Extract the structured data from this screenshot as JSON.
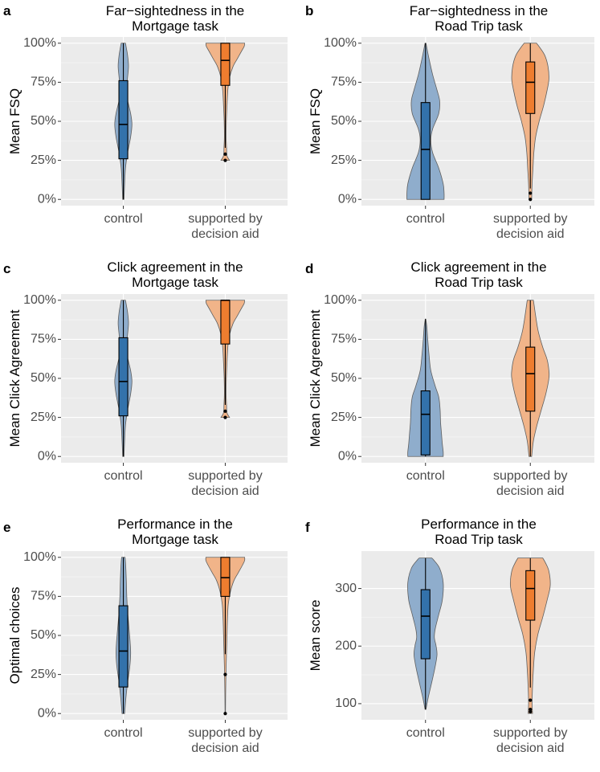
{
  "colors": {
    "control_violin": "#8fadcc",
    "control_box": "#3372ab",
    "aid_violin": "#f1b489",
    "aid_box": "#ee7d2f"
  },
  "chart_data": [
    {
      "letter": "a",
      "type": "violin",
      "title_lines": [
        "Far−sightedness in the",
        "Mortgage task"
      ],
      "ylabel": "Mean FSQ",
      "ylim": [
        -0.04,
        1.04
      ],
      "yticks": [
        0,
        0.25,
        0.5,
        0.75,
        1.0
      ],
      "ytick_labels": [
        "0%",
        "25%",
        "50%",
        "75%",
        "100%"
      ],
      "categories": [
        [
          "control"
        ],
        [
          "supported by",
          "decision aid"
        ]
      ],
      "groups": [
        {
          "name": "control",
          "violin": [
            [
              0.0,
              0.015
            ],
            [
              0.1,
              0.03
            ],
            [
              0.2,
              0.05
            ],
            [
              0.3,
              0.1
            ],
            [
              0.4,
              0.17
            ],
            [
              0.48,
              0.2
            ],
            [
              0.55,
              0.17
            ],
            [
              0.65,
              0.09
            ],
            [
              0.75,
              0.09
            ],
            [
              0.85,
              0.12
            ],
            [
              0.92,
              0.1
            ],
            [
              0.97,
              0.07
            ],
            [
              1.0,
              0.05
            ]
          ],
          "box": {
            "min": 0.0,
            "q1": 0.26,
            "median": 0.48,
            "q3": 0.76,
            "max": 1.0
          },
          "outliers": []
        },
        {
          "name": "supported by decision aid",
          "violin": [
            [
              0.25,
              0.1
            ],
            [
              0.28,
              0.04
            ],
            [
              0.33,
              0.03
            ],
            [
              0.4,
              0.02
            ],
            [
              0.5,
              0.025
            ],
            [
              0.6,
              0.04
            ],
            [
              0.7,
              0.06
            ],
            [
              0.78,
              0.1
            ],
            [
              0.85,
              0.18
            ],
            [
              0.9,
              0.28
            ],
            [
              0.95,
              0.38
            ],
            [
              0.98,
              0.44
            ],
            [
              1.0,
              0.45
            ]
          ],
          "box": {
            "min": 0.33,
            "q1": 0.73,
            "median": 0.89,
            "q3": 1.0,
            "max": 1.0
          },
          "outliers": [
            0.29,
            0.25
          ]
        }
      ]
    },
    {
      "letter": "b",
      "type": "violin",
      "title_lines": [
        "Far−sightedness in the",
        "Road Trip task"
      ],
      "ylabel": "Mean FSQ",
      "ylim": [
        -0.04,
        1.04
      ],
      "yticks": [
        0,
        0.25,
        0.5,
        0.75,
        1.0
      ],
      "ytick_labels": [
        "0%",
        "25%",
        "50%",
        "75%",
        "100%"
      ],
      "categories": [
        [
          "control"
        ],
        [
          "supported by",
          "decision aid"
        ]
      ],
      "groups": [
        {
          "name": "control",
          "violin": [
            [
              0.0,
              0.42
            ],
            [
              0.04,
              0.42
            ],
            [
              0.1,
              0.4
            ],
            [
              0.2,
              0.3
            ],
            [
              0.3,
              0.16
            ],
            [
              0.38,
              0.12
            ],
            [
              0.45,
              0.16
            ],
            [
              0.55,
              0.3
            ],
            [
              0.63,
              0.32
            ],
            [
              0.7,
              0.26
            ],
            [
              0.8,
              0.16
            ],
            [
              0.9,
              0.08
            ],
            [
              1.0,
              0.01
            ]
          ],
          "box": {
            "min": 0.0,
            "q1": 0.0,
            "median": 0.32,
            "q3": 0.62,
            "max": 1.0
          },
          "outliers": []
        },
        {
          "name": "supported by decision aid",
          "violin": [
            [
              0.0,
              0.03
            ],
            [
              0.1,
              0.04
            ],
            [
              0.2,
              0.06
            ],
            [
              0.3,
              0.08
            ],
            [
              0.4,
              0.12
            ],
            [
              0.5,
              0.2
            ],
            [
              0.6,
              0.3
            ],
            [
              0.7,
              0.38
            ],
            [
              0.77,
              0.42
            ],
            [
              0.85,
              0.4
            ],
            [
              0.92,
              0.33
            ],
            [
              0.97,
              0.22
            ],
            [
              1.0,
              0.14
            ]
          ],
          "box": {
            "min": 0.07,
            "q1": 0.55,
            "median": 0.75,
            "q3": 0.88,
            "max": 1.0
          },
          "outliers": [
            0.04,
            0.0
          ]
        }
      ]
    },
    {
      "letter": "c",
      "type": "violin",
      "title_lines": [
        "Click agreement in the",
        "Mortgage task"
      ],
      "ylabel": "Mean Click Agreement",
      "ylim": [
        -0.04,
        1.04
      ],
      "yticks": [
        0,
        0.25,
        0.5,
        0.75,
        1.0
      ],
      "ytick_labels": [
        "0%",
        "25%",
        "50%",
        "75%",
        "100%"
      ],
      "categories": [
        [
          "control"
        ],
        [
          "supported by",
          "decision aid"
        ]
      ],
      "groups": [
        {
          "name": "control",
          "violin": [
            [
              0.0,
              0.015
            ],
            [
              0.1,
              0.03
            ],
            [
              0.2,
              0.05
            ],
            [
              0.3,
              0.1
            ],
            [
              0.4,
              0.17
            ],
            [
              0.48,
              0.2
            ],
            [
              0.55,
              0.17
            ],
            [
              0.65,
              0.09
            ],
            [
              0.75,
              0.09
            ],
            [
              0.85,
              0.12
            ],
            [
              0.92,
              0.1
            ],
            [
              0.97,
              0.07
            ],
            [
              1.0,
              0.05
            ]
          ],
          "box": {
            "min": 0.0,
            "q1": 0.26,
            "median": 0.48,
            "q3": 0.76,
            "max": 1.0
          },
          "outliers": []
        },
        {
          "name": "supported by decision aid",
          "violin": [
            [
              0.25,
              0.1
            ],
            [
              0.28,
              0.04
            ],
            [
              0.33,
              0.03
            ],
            [
              0.4,
              0.02
            ],
            [
              0.5,
              0.025
            ],
            [
              0.6,
              0.04
            ],
            [
              0.7,
              0.06
            ],
            [
              0.78,
              0.1
            ],
            [
              0.85,
              0.18
            ],
            [
              0.9,
              0.28
            ],
            [
              0.95,
              0.38
            ],
            [
              0.98,
              0.44
            ],
            [
              1.0,
              0.45
            ]
          ],
          "box": {
            "min": 0.33,
            "q1": 0.72,
            "median": 1.0,
            "q3": 1.0,
            "max": 1.0
          },
          "outliers": [
            0.29,
            0.25
          ]
        }
      ]
    },
    {
      "letter": "d",
      "type": "violin",
      "title_lines": [
        "Click agreement in the",
        "Road Trip task"
      ],
      "ylabel": "Mean Click Agreement",
      "ylim": [
        -0.04,
        1.04
      ],
      "yticks": [
        0,
        0.25,
        0.5,
        0.75,
        1.0
      ],
      "ytick_labels": [
        "0%",
        "25%",
        "50%",
        "75%",
        "100%"
      ],
      "categories": [
        [
          "control"
        ],
        [
          "supported by",
          "decision aid"
        ]
      ],
      "groups": [
        {
          "name": "control",
          "violin": [
            [
              0.0,
              0.4
            ],
            [
              0.03,
              0.4
            ],
            [
              0.08,
              0.38
            ],
            [
              0.15,
              0.36
            ],
            [
              0.22,
              0.34
            ],
            [
              0.3,
              0.33
            ],
            [
              0.38,
              0.3
            ],
            [
              0.45,
              0.22
            ],
            [
              0.55,
              0.12
            ],
            [
              0.65,
              0.08
            ],
            [
              0.75,
              0.05
            ],
            [
              0.83,
              0.03
            ],
            [
              0.88,
              0.005
            ]
          ],
          "box": {
            "min": 0.0,
            "q1": 0.01,
            "median": 0.27,
            "q3": 0.42,
            "max": 0.88
          },
          "outliers": []
        },
        {
          "name": "supported by decision aid",
          "violin": [
            [
              0.0,
              0.03
            ],
            [
              0.1,
              0.07
            ],
            [
              0.2,
              0.15
            ],
            [
              0.3,
              0.25
            ],
            [
              0.4,
              0.35
            ],
            [
              0.5,
              0.42
            ],
            [
              0.55,
              0.42
            ],
            [
              0.62,
              0.38
            ],
            [
              0.7,
              0.28
            ],
            [
              0.8,
              0.18
            ],
            [
              0.9,
              0.12
            ],
            [
              0.96,
              0.09
            ],
            [
              1.0,
              0.07
            ]
          ],
          "box": {
            "min": 0.0,
            "q1": 0.29,
            "median": 0.53,
            "q3": 0.7,
            "max": 1.0
          },
          "outliers": []
        }
      ]
    },
    {
      "letter": "e",
      "type": "violin",
      "title_lines": [
        "Performance in the",
        "Mortgage task"
      ],
      "ylabel": "Optimal choices",
      "ylim": [
        -0.04,
        1.04
      ],
      "yticks": [
        0,
        0.25,
        0.5,
        0.75,
        1.0
      ],
      "ytick_labels": [
        "0%",
        "25%",
        "50%",
        "75%",
        "100%"
      ],
      "categories": [
        [
          "control"
        ],
        [
          "supported by",
          "decision aid"
        ]
      ],
      "groups": [
        {
          "name": "control",
          "violin": [
            [
              0.0,
              0.03
            ],
            [
              0.1,
              0.06
            ],
            [
              0.2,
              0.1
            ],
            [
              0.3,
              0.15
            ],
            [
              0.38,
              0.17
            ],
            [
              0.45,
              0.16
            ],
            [
              0.55,
              0.13
            ],
            [
              0.65,
              0.1
            ],
            [
              0.75,
              0.08
            ],
            [
              0.85,
              0.07
            ],
            [
              0.92,
              0.06
            ],
            [
              0.97,
              0.05
            ],
            [
              1.0,
              0.04
            ]
          ],
          "box": {
            "min": 0.0,
            "q1": 0.17,
            "median": 0.4,
            "q3": 0.69,
            "max": 1.0
          },
          "outliers": []
        },
        {
          "name": "supported by decision aid",
          "violin": [
            [
              0.0,
              0.005
            ],
            [
              0.15,
              0.01
            ],
            [
              0.3,
              0.02
            ],
            [
              0.4,
              0.03
            ],
            [
              0.5,
              0.04
            ],
            [
              0.6,
              0.05
            ],
            [
              0.7,
              0.07
            ],
            [
              0.78,
              0.12
            ],
            [
              0.85,
              0.2
            ],
            [
              0.9,
              0.3
            ],
            [
              0.95,
              0.4
            ],
            [
              0.98,
              0.45
            ],
            [
              1.0,
              0.45
            ]
          ],
          "box": {
            "min": 0.38,
            "q1": 0.75,
            "median": 0.87,
            "q3": 1.0,
            "max": 1.0
          },
          "outliers": [
            0.25,
            0.0
          ]
        }
      ]
    },
    {
      "letter": "f",
      "type": "violin",
      "title_lines": [
        "Performance in the",
        "Road Trip task"
      ],
      "ylabel": "Mean score",
      "ylim": [
        72,
        365
      ],
      "yticks": [
        100,
        200,
        300
      ],
      "ytick_labels": [
        "100",
        "200",
        "300"
      ],
      "categories": [
        [
          "control"
        ],
        [
          "supported by",
          "decision aid"
        ]
      ],
      "groups": [
        {
          "name": "control",
          "violin": [
            [
              90,
              0.01
            ],
            [
              110,
              0.06
            ],
            [
              140,
              0.15
            ],
            [
              165,
              0.22
            ],
            [
              185,
              0.26
            ],
            [
              200,
              0.24
            ],
            [
              215,
              0.2
            ],
            [
              230,
              0.22
            ],
            [
              255,
              0.3
            ],
            [
              280,
              0.38
            ],
            [
              310,
              0.4
            ],
            [
              335,
              0.32
            ],
            [
              350,
              0.18
            ],
            [
              353,
              0.14
            ]
          ],
          "box": {
            "min": 90,
            "q1": 178,
            "median": 252,
            "q3": 298,
            "max": 353
          },
          "outliers": []
        },
        {
          "name": "supported by decision aid",
          "violin": [
            [
              83,
              0.05
            ],
            [
              100,
              0.04
            ],
            [
              130,
              0.05
            ],
            [
              160,
              0.07
            ],
            [
              190,
              0.1
            ],
            [
              220,
              0.17
            ],
            [
              250,
              0.28
            ],
            [
              280,
              0.38
            ],
            [
              305,
              0.45
            ],
            [
              330,
              0.42
            ],
            [
              345,
              0.34
            ],
            [
              353,
              0.28
            ]
          ],
          "box": {
            "min": 128,
            "q1": 245,
            "median": 300,
            "q3": 331,
            "max": 353
          },
          "outliers": [
            106,
            90,
            86
          ]
        }
      ]
    }
  ]
}
